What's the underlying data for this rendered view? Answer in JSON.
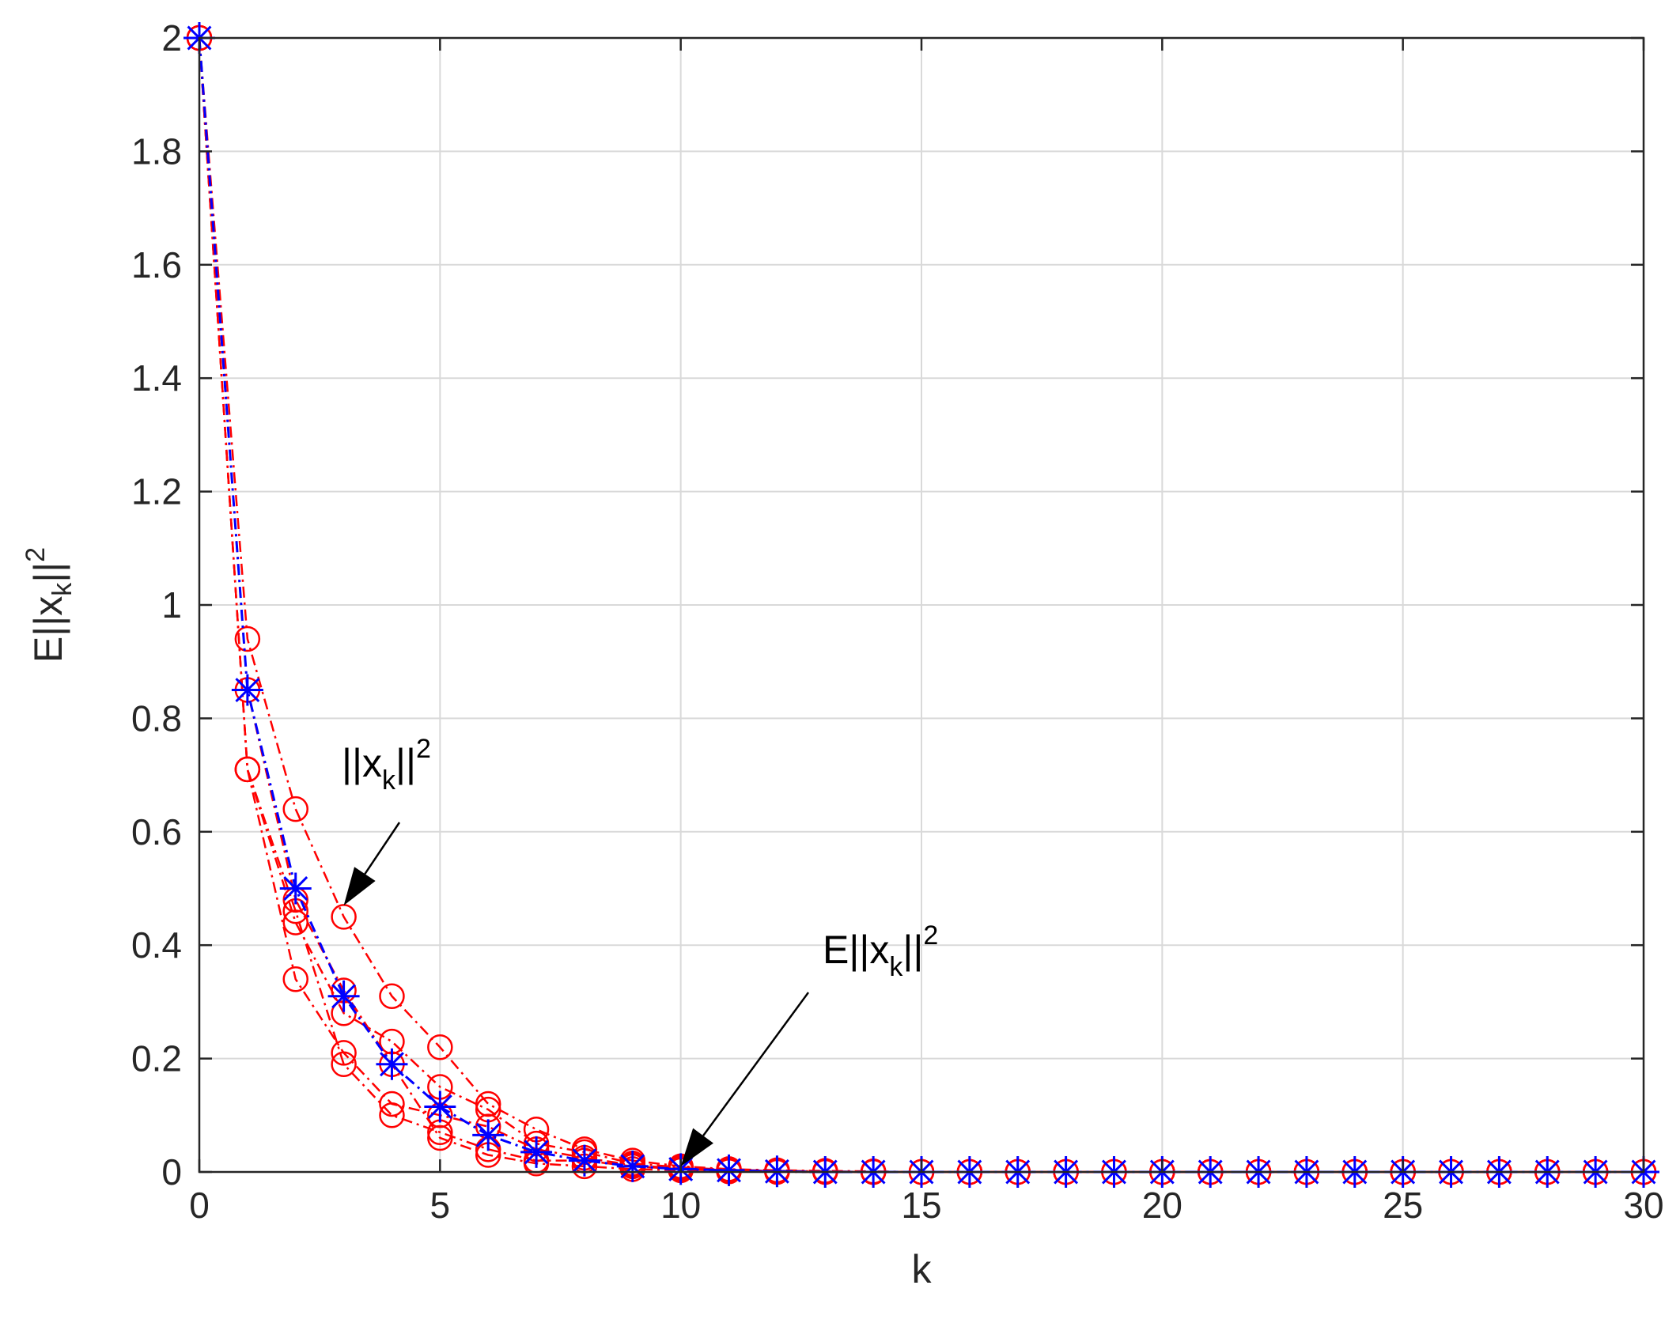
{
  "chart_data": {
    "type": "line",
    "title": "",
    "xlabel": "k",
    "ylabel": {
      "prefix": "E||x",
      "sub": "k",
      "mid": "||",
      "sup": "2"
    },
    "xlim": [
      0,
      30
    ],
    "ylim": [
      0,
      2
    ],
    "xticks": [
      0,
      5,
      10,
      15,
      20,
      25,
      30
    ],
    "xtick_labels": [
      "0",
      "5",
      "10",
      "15",
      "20",
      "25",
      "30"
    ],
    "yticks": [
      0,
      0.2,
      0.4,
      0.6,
      0.8,
      1,
      1.2,
      1.4,
      1.6,
      1.8,
      2
    ],
    "ytick_labels": [
      "0",
      "0.2",
      "0.4",
      "0.6",
      "0.8",
      "1",
      "1.2",
      "1.4",
      "1.6",
      "1.8",
      "2"
    ],
    "grid": true,
    "x": [
      0,
      1,
      2,
      3,
      4,
      5,
      6,
      7,
      8,
      9,
      10,
      11,
      12,
      13,
      14,
      15,
      16,
      17,
      18,
      19,
      20,
      21,
      22,
      23,
      24,
      25,
      26,
      27,
      28,
      29,
      30
    ],
    "series": [
      {
        "marker": "circle",
        "color": "#ff0000",
        "values": [
          2,
          0.94,
          0.64,
          0.45,
          0.31,
          0.22,
          0.12,
          0.075,
          0.04,
          0.02,
          0.01,
          0.005,
          0.003,
          0.002,
          0.001,
          0,
          0,
          0,
          0,
          0,
          0,
          0,
          0,
          0,
          0,
          0,
          0,
          0,
          0,
          0,
          0
        ]
      },
      {
        "marker": "circle",
        "color": "#ff0000",
        "values": [
          2,
          0.71,
          0.44,
          0.28,
          0.23,
          0.15,
          0.11,
          0.05,
          0.035,
          0.015,
          0.008,
          0.004,
          0.002,
          0.001,
          0,
          0,
          0,
          0,
          0,
          0,
          0,
          0,
          0,
          0,
          0,
          0,
          0,
          0,
          0,
          0,
          0
        ]
      },
      {
        "marker": "circle",
        "color": "#ff0000",
        "values": [
          2,
          0.71,
          0.34,
          0.21,
          0.12,
          0.1,
          0.08,
          0.04,
          0.025,
          0.012,
          0.006,
          0.003,
          0.002,
          0.001,
          0,
          0,
          0,
          0,
          0,
          0,
          0,
          0,
          0,
          0,
          0,
          0,
          0,
          0,
          0,
          0,
          0
        ]
      },
      {
        "marker": "circle",
        "color": "#ff0000",
        "values": [
          2,
          0.71,
          0.46,
          0.19,
          0.1,
          0.07,
          0.04,
          0.02,
          0.02,
          0.01,
          0.005,
          0.002,
          0.001,
          0,
          0,
          0,
          0,
          0,
          0,
          0,
          0,
          0,
          0,
          0,
          0,
          0,
          0,
          0,
          0,
          0,
          0
        ]
      },
      {
        "marker": "circle",
        "color": "#ff0000",
        "values": [
          2,
          0.85,
          0.48,
          0.32,
          0.19,
          0.06,
          0.03,
          0.015,
          0.01,
          0.005,
          0.003,
          0.001,
          0,
          0,
          0,
          0,
          0,
          0,
          0,
          0,
          0,
          0,
          0,
          0,
          0,
          0,
          0,
          0,
          0,
          0,
          0
        ]
      },
      {
        "marker": "star",
        "color": "#0000ff",
        "values": [
          2,
          0.85,
          0.5,
          0.31,
          0.19,
          0.115,
          0.065,
          0.035,
          0.02,
          0.01,
          0.005,
          0.003,
          0.001,
          0,
          0,
          0,
          0,
          0,
          0,
          0,
          0,
          0,
          0,
          0,
          0,
          0,
          0,
          0,
          0,
          0,
          0
        ]
      }
    ],
    "annotations": [
      {
        "prefix": "||x",
        "sub": "k",
        "mid": "||",
        "sup": "2",
        "arrow_to": [
          3,
          0.47
        ]
      },
      {
        "prefix": "E||x",
        "sub": "k",
        "mid": "||",
        "sup": "2",
        "arrow_to": [
          10,
          0.01
        ]
      }
    ]
  },
  "colors": {
    "grid": "#d9d9d9",
    "axis": "#262626",
    "circle_series": "#ff0000",
    "star_series": "#0000ff",
    "arrow": "#000000"
  }
}
